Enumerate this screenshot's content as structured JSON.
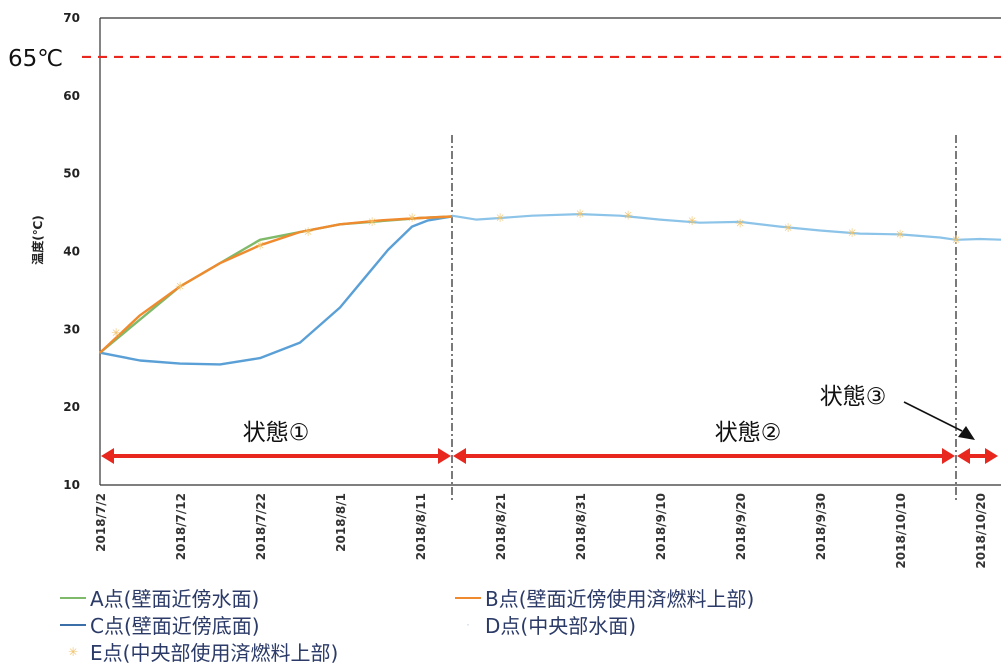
{
  "chart_data": {
    "type": "line",
    "title": "",
    "xlabel": "",
    "ylabel": "温度(℃)",
    "ylim": [
      10,
      70
    ],
    "yticks": [
      "10",
      "20",
      "30",
      "40",
      "50",
      "60",
      "70"
    ],
    "x_ticks": [
      "2018/7/2",
      "2018/7/12",
      "2018/7/22",
      "2018/8/1",
      "2018/8/11",
      "2018/8/21",
      "2018/8/31",
      "2018/9/10",
      "2018/9/20",
      "2018/9/30",
      "2018/10/10",
      "2018/10/20"
    ],
    "threshold": {
      "label": "65℃",
      "value": 65,
      "color": "#e8281f"
    },
    "state_dividers": [
      "2018/8/15",
      "2018/10/17"
    ],
    "states": [
      {
        "label": "状態①",
        "from": "2018/7/2",
        "to": "2018/8/15"
      },
      {
        "label": "状態②",
        "from": "2018/8/15",
        "to": "2018/10/17"
      },
      {
        "label": "状態③",
        "from": "2018/10/17",
        "to": "2018/10/23"
      }
    ],
    "series": [
      {
        "name": "A点(壁面近傍水面)",
        "color": "#7fb96a",
        "style": "line",
        "x": [
          "2018/7/2",
          "2018/7/12",
          "2018/7/22",
          "2018/8/1",
          "2018/8/11",
          "2018/8/15"
        ],
        "values": [
          27,
          35.5,
          41.5,
          43.5,
          44.3,
          44.5
        ]
      },
      {
        "name": "B点(壁面近傍使用済燃料上部)",
        "color": "#ef8a2e",
        "style": "line",
        "x": [
          "2018/7/2",
          "2018/7/7",
          "2018/7/12",
          "2018/7/17",
          "2018/7/22",
          "2018/7/27",
          "2018/8/1",
          "2018/8/6",
          "2018/8/11",
          "2018/8/15"
        ],
        "values": [
          27,
          31.8,
          35.5,
          38.5,
          40.8,
          42.5,
          43.5,
          44.0,
          44.3,
          44.5
        ]
      },
      {
        "name": "C点(壁面近傍底面)",
        "color": "#5aa0d6",
        "style": "line",
        "x": [
          "2018/7/2",
          "2018/7/7",
          "2018/7/12",
          "2018/7/17",
          "2018/7/22",
          "2018/7/27",
          "2018/8/1",
          "2018/8/4",
          "2018/8/7",
          "2018/8/10",
          "2018/8/12",
          "2018/8/15"
        ],
        "values": [
          27,
          26,
          25.6,
          25.5,
          26.3,
          28.3,
          32.8,
          36.5,
          40.2,
          43.2,
          44.0,
          44.5
        ]
      },
      {
        "name": "D点(中央部水面)",
        "color": "#8cc3e8",
        "style": "line",
        "x": [
          "2018/8/15",
          "2018/8/18",
          "2018/8/21",
          "2018/8/25",
          "2018/8/31",
          "2018/9/5",
          "2018/9/10",
          "2018/9/15",
          "2018/9/20",
          "2018/9/25",
          "2018/9/30",
          "2018/10/5",
          "2018/10/10",
          "2018/10/15",
          "2018/10/17",
          "2018/10/20",
          "2018/10/23"
        ],
        "values": [
          44.6,
          44.1,
          44.3,
          44.6,
          44.8,
          44.6,
          44.1,
          43.7,
          43.8,
          43.2,
          42.7,
          42.3,
          42.2,
          41.8,
          41.5,
          41.6,
          41.5
        ]
      },
      {
        "name": "E点(中央部使用済燃料上部)",
        "color": "#f0c36a",
        "style": "marker",
        "x": [
          "2018/7/4",
          "2018/7/12",
          "2018/7/22",
          "2018/7/28",
          "2018/8/5",
          "2018/8/10",
          "2018/8/21",
          "2018/8/31",
          "2018/9/6",
          "2018/9/14",
          "2018/9/20",
          "2018/9/26",
          "2018/10/4",
          "2018/10/10",
          "2018/10/17"
        ],
        "values": [
          29.5,
          35.5,
          40.8,
          42.5,
          43.8,
          44.3,
          44.3,
          44.8,
          44.6,
          43.9,
          43.6,
          43.0,
          42.4,
          42.2,
          41.5
        ]
      }
    ],
    "grid": false,
    "legend_position": "bottom"
  }
}
